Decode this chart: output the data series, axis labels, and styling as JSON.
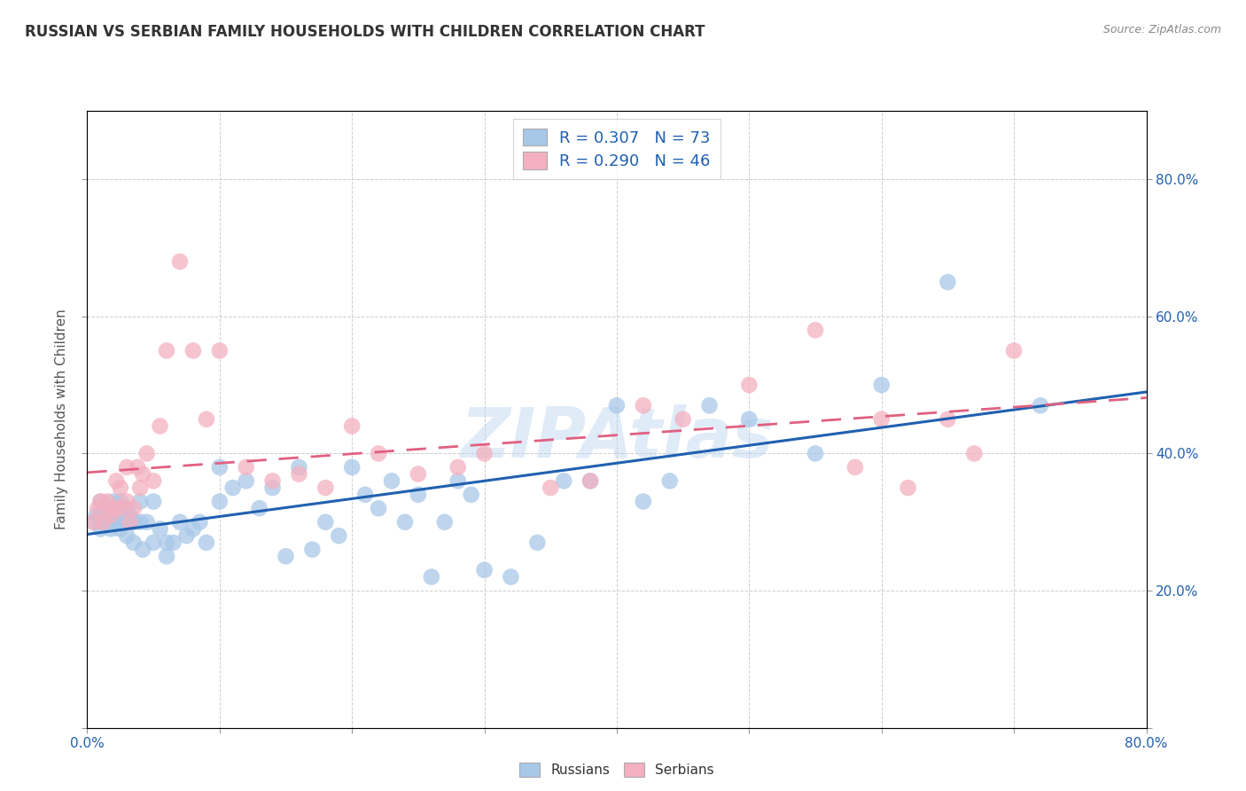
{
  "title": "RUSSIAN VS SERBIAN FAMILY HOUSEHOLDS WITH CHILDREN CORRELATION CHART",
  "source": "Source: ZipAtlas.com",
  "ylabel": "Family Households with Children",
  "watermark": "ZIPAtlas",
  "xlim": [
    0.0,
    0.8
  ],
  "ylim": [
    0.0,
    0.9
  ],
  "xticks": [
    0.0,
    0.1,
    0.2,
    0.3,
    0.4,
    0.5,
    0.6,
    0.7,
    0.8
  ],
  "yticks": [
    0.0,
    0.2,
    0.4,
    0.6,
    0.8
  ],
  "russian_R": 0.307,
  "russian_N": 73,
  "serbian_R": 0.29,
  "serbian_N": 46,
  "russian_color": "#a8c8e8",
  "serbian_color": "#f4b0c0",
  "russian_line_color": "#2060b0",
  "serbian_line_color": "#e06080",
  "legend_text_color": "#2060b0",
  "title_color": "#333333",
  "background_color": "#ffffff",
  "grid_color": "#c0c0c0",
  "russians_x": [
    0.005,
    0.007,
    0.01,
    0.01,
    0.01,
    0.012,
    0.015,
    0.015,
    0.018,
    0.02,
    0.02,
    0.022,
    0.025,
    0.025,
    0.025,
    0.025,
    0.03,
    0.03,
    0.03,
    0.03,
    0.032,
    0.035,
    0.035,
    0.04,
    0.04,
    0.042,
    0.045,
    0.05,
    0.05,
    0.055,
    0.06,
    0.06,
    0.065,
    0.07,
    0.075,
    0.08,
    0.085,
    0.09,
    0.1,
    0.1,
    0.11,
    0.12,
    0.13,
    0.14,
    0.15,
    0.16,
    0.17,
    0.18,
    0.19,
    0.2,
    0.21,
    0.22,
    0.23,
    0.24,
    0.25,
    0.26,
    0.27,
    0.28,
    0.29,
    0.3,
    0.32,
    0.34,
    0.36,
    0.38,
    0.4,
    0.42,
    0.44,
    0.47,
    0.5,
    0.55,
    0.6,
    0.65,
    0.72
  ],
  "russians_y": [
    0.3,
    0.31,
    0.33,
    0.31,
    0.29,
    0.3,
    0.3,
    0.32,
    0.29,
    0.3,
    0.33,
    0.3,
    0.29,
    0.3,
    0.32,
    0.33,
    0.28,
    0.3,
    0.3,
    0.32,
    0.31,
    0.27,
    0.3,
    0.3,
    0.33,
    0.26,
    0.3,
    0.27,
    0.33,
    0.29,
    0.25,
    0.27,
    0.27,
    0.3,
    0.28,
    0.29,
    0.3,
    0.27,
    0.38,
    0.33,
    0.35,
    0.36,
    0.32,
    0.35,
    0.25,
    0.38,
    0.26,
    0.3,
    0.28,
    0.38,
    0.34,
    0.32,
    0.36,
    0.3,
    0.34,
    0.22,
    0.3,
    0.36,
    0.34,
    0.23,
    0.22,
    0.27,
    0.36,
    0.36,
    0.47,
    0.33,
    0.36,
    0.47,
    0.45,
    0.4,
    0.5,
    0.65,
    0.47
  ],
  "serbians_x": [
    0.005,
    0.008,
    0.01,
    0.012,
    0.015,
    0.018,
    0.02,
    0.022,
    0.025,
    0.025,
    0.03,
    0.03,
    0.032,
    0.035,
    0.038,
    0.04,
    0.042,
    0.045,
    0.05,
    0.055,
    0.06,
    0.07,
    0.08,
    0.09,
    0.1,
    0.12,
    0.14,
    0.16,
    0.18,
    0.2,
    0.22,
    0.25,
    0.28,
    0.3,
    0.35,
    0.38,
    0.42,
    0.45,
    0.5,
    0.55,
    0.58,
    0.6,
    0.62,
    0.65,
    0.67,
    0.7
  ],
  "serbians_y": [
    0.3,
    0.32,
    0.33,
    0.3,
    0.33,
    0.31,
    0.32,
    0.36,
    0.32,
    0.35,
    0.33,
    0.38,
    0.3,
    0.32,
    0.38,
    0.35,
    0.37,
    0.4,
    0.36,
    0.44,
    0.55,
    0.68,
    0.55,
    0.45,
    0.55,
    0.38,
    0.36,
    0.37,
    0.35,
    0.44,
    0.4,
    0.37,
    0.38,
    0.4,
    0.35,
    0.36,
    0.47,
    0.45,
    0.5,
    0.58,
    0.38,
    0.45,
    0.35,
    0.45,
    0.4,
    0.55
  ]
}
